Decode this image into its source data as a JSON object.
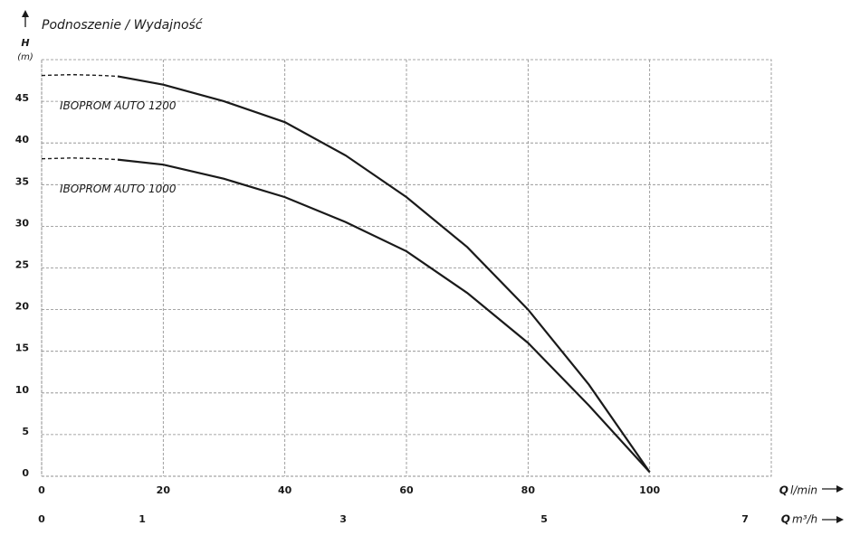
{
  "chart_data": {
    "type": "line",
    "title": "Podnoszenie / Wydajność",
    "y_label": {
      "symbol": "H",
      "unit": "(m)"
    },
    "x_label": {
      "symbol": "Q",
      "unit": "l/min"
    },
    "x2_label": {
      "symbol": "Q",
      "unit": "m³/h"
    },
    "xlim": [
      0,
      120
    ],
    "xticks": [
      0,
      20,
      40,
      60,
      80,
      100
    ],
    "x2lim": [
      0,
      7.26
    ],
    "x2ticks": [
      0,
      1,
      3,
      5,
      7
    ],
    "ylim": [
      0,
      50
    ],
    "yticks": [
      0,
      5,
      10,
      15,
      20,
      25,
      30,
      35,
      40,
      45
    ],
    "grid": true,
    "series": [
      {
        "name": "IBOPROM AUTO 1200",
        "color": "#1a1a1a",
        "dashed": {
          "x": [
            0,
            5,
            10,
            12.5
          ],
          "values": [
            48.1,
            48.2,
            48.1,
            48
          ]
        },
        "solid": {
          "x": [
            12.5,
            20,
            30,
            40,
            50,
            60,
            70,
            80,
            90,
            100
          ],
          "values": [
            48,
            47,
            45,
            42.5,
            38.5,
            33.5,
            27.5,
            20,
            11,
            0.5
          ]
        }
      },
      {
        "name": "IBOPROM AUTO 1000",
        "color": "#1a1a1a",
        "dashed": {
          "x": [
            0,
            5,
            10,
            12.5
          ],
          "values": [
            38.1,
            38.2,
            38.1,
            38
          ]
        },
        "solid": {
          "x": [
            12.5,
            20,
            30,
            40,
            50,
            60,
            70,
            80,
            90,
            100
          ],
          "values": [
            38,
            37.4,
            35.7,
            33.5,
            30.5,
            27,
            22,
            16,
            8.5,
            0.5
          ]
        }
      }
    ]
  }
}
